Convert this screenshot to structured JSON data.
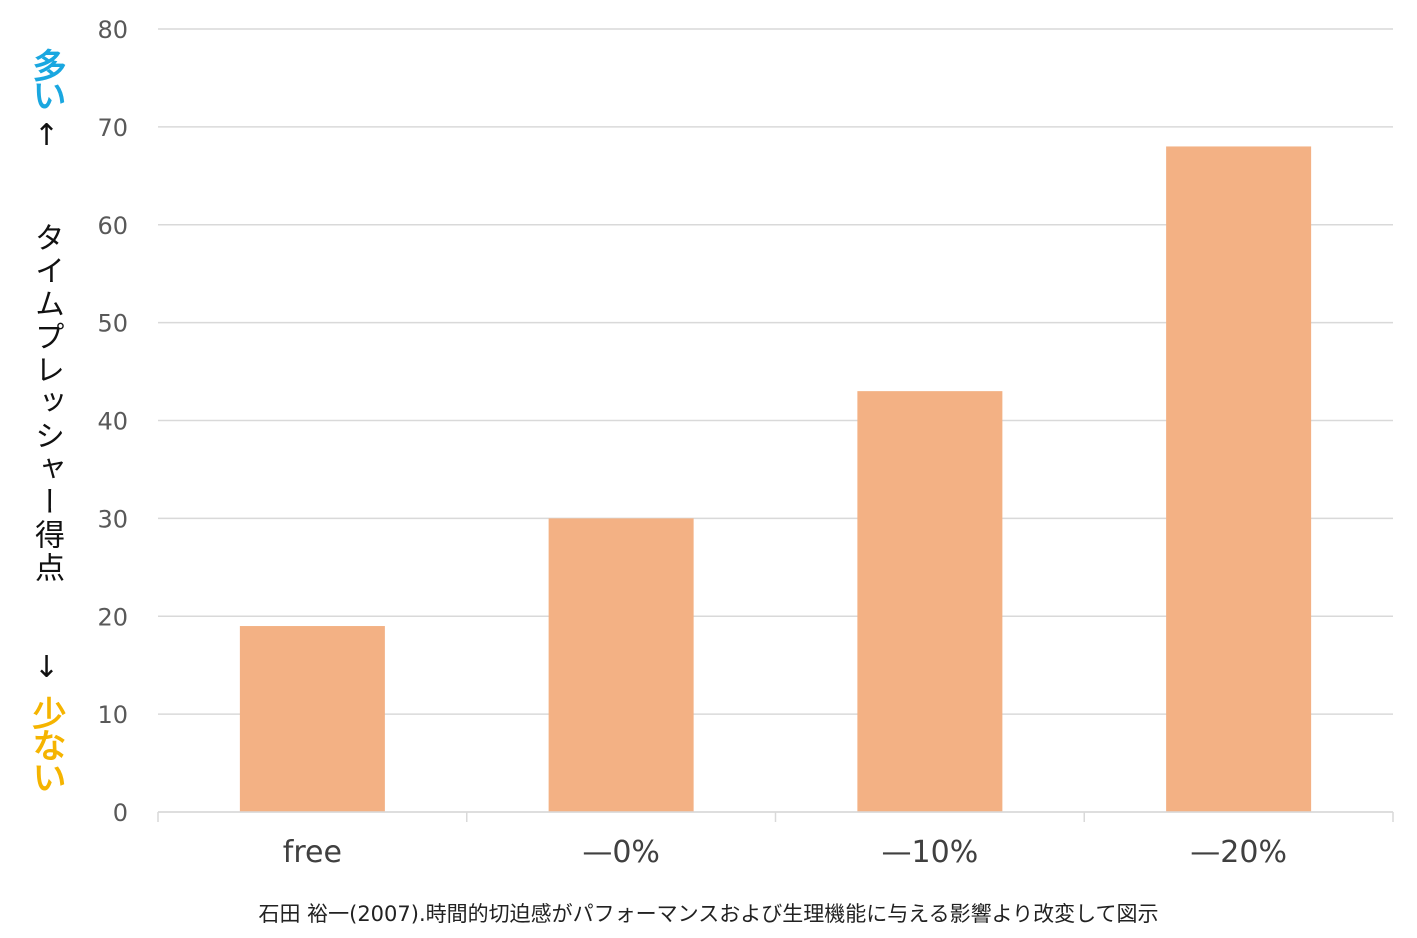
{
  "colors": {
    "bar": "#f3b184",
    "grid": "#d9d9d9",
    "axis_text": "#595959",
    "category_text": "#404040",
    "label_more": "#1aa7e0",
    "label_less": "#f5b400",
    "label_main": "#111111"
  },
  "y_axis_label": {
    "more": "多い",
    "arrow_up": "↑",
    "main": "タイムプレッシャー得点",
    "arrow_down": "↓",
    "less": "少ない"
  },
  "source_note": "石田 裕一(2007).時間的切迫感がパフォーマンスおよび生理機能に与える影響より改変して図示",
  "chart_data": {
    "type": "bar",
    "categories": [
      "free",
      "—0%",
      "—10%",
      "—20%"
    ],
    "values": [
      19,
      30,
      43,
      68
    ],
    "title": "",
    "xlabel": "",
    "ylabel": "タイムプレッシャー得点",
    "ylim": [
      0,
      80
    ],
    "yticks": [
      0,
      10,
      20,
      30,
      40,
      50,
      60,
      70,
      80
    ],
    "grid": true,
    "legend": "none"
  }
}
